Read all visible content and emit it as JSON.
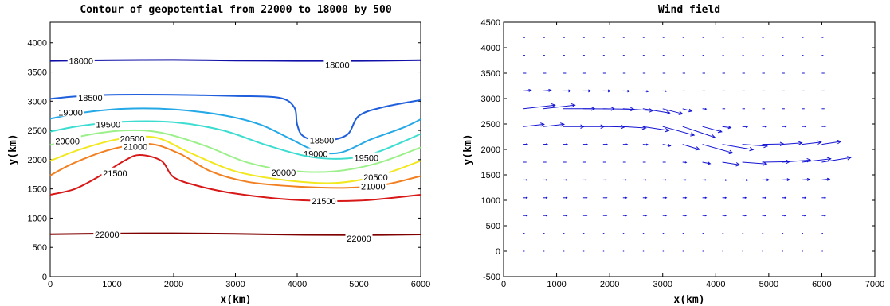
{
  "chart_data": [
    {
      "type": "contour",
      "title": "Contour of geopotential from 22000 to 18000 by 500",
      "xlabel": "x(km)",
      "ylabel": "y(km)",
      "xlim": [
        0,
        6000
      ],
      "ylim": [
        0,
        4350
      ],
      "xticks": [
        "0",
        "1000",
        "2000",
        "3000",
        "4000",
        "5000",
        "6000"
      ],
      "yticks": [
        "0",
        "500",
        "1000",
        "1500",
        "2000",
        "2500",
        "3000",
        "3500",
        "4000"
      ],
      "contours": [
        {
          "level": "18000",
          "color": "#1010a8",
          "labels": [
            [
              500,
              3690
            ],
            [
              4650,
              3620
            ]
          ],
          "points": [
            [
              0,
              3690
            ],
            [
              1000,
              3700
            ],
            [
              2000,
              3705
            ],
            [
              3000,
              3695
            ],
            [
              4000,
              3690
            ],
            [
              5000,
              3690
            ],
            [
              6000,
              3700
            ]
          ]
        },
        {
          "level": "18500",
          "color": "#1f5fdc",
          "labels": [
            [
              650,
              3060
            ],
            [
              4400,
              2330
            ]
          ],
          "points": [
            [
              0,
              3040
            ],
            [
              400,
              3080
            ],
            [
              1000,
              3110
            ],
            [
              2000,
              3110
            ],
            [
              3000,
              3090
            ],
            [
              3700,
              3060
            ],
            [
              3950,
              2900
            ],
            [
              4000,
              2600
            ],
            [
              4100,
              2400
            ],
            [
              4400,
              2320
            ],
            [
              4800,
              2420
            ],
            [
              5000,
              2750
            ],
            [
              5400,
              2900
            ],
            [
              6000,
              3020
            ]
          ]
        },
        {
          "level": "19000",
          "color": "#24a8e6",
          "labels": [
            [
              330,
              2810
            ],
            [
              4300,
              2100
            ]
          ],
          "points": [
            [
              0,
              2700
            ],
            [
              500,
              2800
            ],
            [
              1200,
              2870
            ],
            [
              2000,
              2860
            ],
            [
              2800,
              2760
            ],
            [
              3400,
              2600
            ],
            [
              3900,
              2350
            ],
            [
              4300,
              2150
            ],
            [
              4700,
              2120
            ],
            [
              5200,
              2350
            ],
            [
              5700,
              2540
            ],
            [
              6000,
              2690
            ]
          ]
        },
        {
          "level": "19500",
          "color": "#3cddd0",
          "labels": [
            [
              940,
              2600
            ],
            [
              5120,
              2030
            ]
          ],
          "points": [
            [
              0,
              2480
            ],
            [
              500,
              2580
            ],
            [
              1200,
              2650
            ],
            [
              2000,
              2640
            ],
            [
              2800,
              2500
            ],
            [
              3500,
              2250
            ],
            [
              4200,
              2050
            ],
            [
              4800,
              2020
            ],
            [
              5300,
              2130
            ],
            [
              6000,
              2440
            ]
          ]
        },
        {
          "level": "20000",
          "color": "#9cf08a",
          "labels": [
            [
              280,
              2320
            ],
            [
              3780,
              1780
            ]
          ],
          "points": [
            [
              0,
              2250
            ],
            [
              500,
              2400
            ],
            [
              1200,
              2500
            ],
            [
              1800,
              2460
            ],
            [
              2500,
              2240
            ],
            [
              3200,
              1950
            ],
            [
              3900,
              1810
            ],
            [
              4600,
              1800
            ],
            [
              5300,
              1940
            ],
            [
              6000,
              2210
            ]
          ]
        },
        {
          "level": "20500",
          "color": "#f1e820",
          "labels": [
            [
              1330,
              2360
            ],
            [
              5270,
              1700
            ]
          ],
          "points": [
            [
              0,
              1980
            ],
            [
              500,
              2180
            ],
            [
              1100,
              2350
            ],
            [
              1700,
              2380
            ],
            [
              2300,
              2100
            ],
            [
              3000,
              1800
            ],
            [
              3800,
              1650
            ],
            [
              4600,
              1600
            ],
            [
              5300,
              1720
            ],
            [
              6000,
              1980
            ]
          ]
        },
        {
          "level": "21000",
          "color": "#f28020",
          "labels": [
            [
              1380,
              2220
            ],
            [
              5230,
              1540
            ]
          ],
          "points": [
            [
              0,
              1730
            ],
            [
              400,
              1950
            ],
            [
              1000,
              2180
            ],
            [
              1600,
              2270
            ],
            [
              2100,
              2100
            ],
            [
              2600,
              1800
            ],
            [
              3200,
              1620
            ],
            [
              4000,
              1540
            ],
            [
              4800,
              1520
            ],
            [
              5400,
              1570
            ],
            [
              6000,
              1720
            ]
          ]
        },
        {
          "level": "21500",
          "color": "#d81818",
          "labels": [
            [
              1050,
              1770
            ],
            [
              4430,
              1290
            ]
          ],
          "points": [
            [
              0,
              1400
            ],
            [
              400,
              1500
            ],
            [
              800,
              1720
            ],
            [
              1200,
              1980
            ],
            [
              1450,
              2080
            ],
            [
              1800,
              1980
            ],
            [
              2000,
              1700
            ],
            [
              2400,
              1550
            ],
            [
              3000,
              1420
            ],
            [
              4000,
              1310
            ],
            [
              5000,
              1300
            ],
            [
              6000,
              1400
            ]
          ]
        },
        {
          "level": "22000",
          "color": "#800000",
          "labels": [
            [
              920,
              720
            ],
            [
              5000,
              650
            ]
          ],
          "points": [
            [
              0,
              725
            ],
            [
              1000,
              735
            ],
            [
              2000,
              740
            ],
            [
              3000,
              730
            ],
            [
              4000,
              715
            ],
            [
              5000,
              710
            ],
            [
              6000,
              720
            ]
          ]
        }
      ]
    },
    {
      "type": "quiver",
      "title": "Wind field",
      "xlabel": "x(km)",
      "ylabel": "y(km)",
      "xlim": [
        0,
        7000
      ],
      "ylim": [
        -500,
        4500
      ],
      "xticks": [
        "0",
        "1000",
        "2000",
        "3000",
        "4000",
        "5000",
        "6000",
        "7000"
      ],
      "yticks": [
        "-500",
        "0",
        "500",
        "1000",
        "1500",
        "2000",
        "2500",
        "3000",
        "3500",
        "4000",
        "4500"
      ],
      "arrow_color": "#1414d4",
      "grid": {
        "x0": 0,
        "dx": 375,
        "nx": 17,
        "y0": 0,
        "dy": 350,
        "ny": 13
      },
      "field_note": "Eastward jet near y=2500-2800 km in the west (x<3000) and near y=1700-2100 km in the east (x>3500); weak flow elsewhere."
    }
  ]
}
